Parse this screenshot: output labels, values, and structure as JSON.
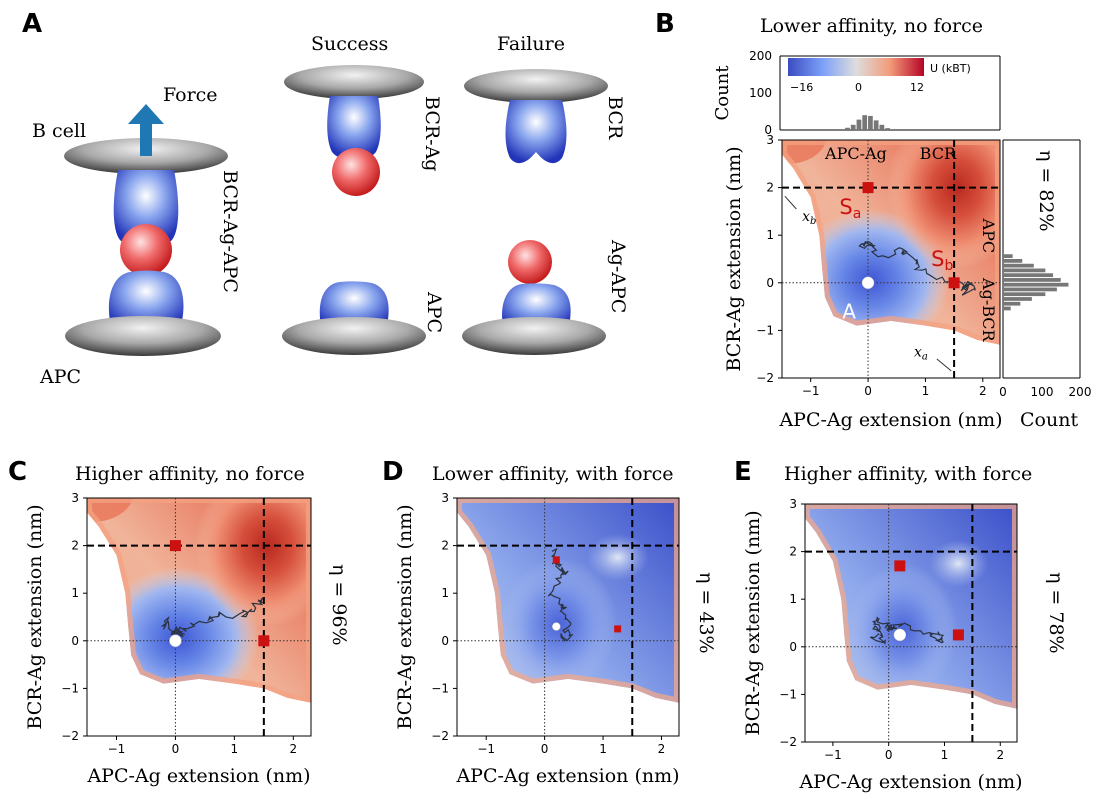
{
  "panel_a": {
    "letter": "A",
    "force_label": "Force",
    "bcell_label": "B cell",
    "apc_label": "APC",
    "complex_label": "BCR-Ag-APC",
    "success_label": "Success",
    "failure_label": "Failure",
    "bcr_ag_label": "BCR-Ag",
    "apc_label_right": "APC",
    "bcr_label": "BCR",
    "ag_apc_label": "Ag-APC"
  },
  "panel_b": {
    "letter": "B",
    "title": "Lower affinity, no force",
    "eta": "η = 82%",
    "colorbar": {
      "min_label": "−16",
      "mid_label": "0",
      "max_label": "12",
      "unit": "U (kBT)",
      "min": -16,
      "max": 12
    },
    "region_labels": {
      "apc_ag": "APC-Ag",
      "bcr": "BCR",
      "apc": "APC",
      "ag_bcr": "Ag-BCR",
      "a": "A",
      "sa": "S",
      "sa_sub": "a",
      "sb": "S",
      "sb_sub": "b"
    },
    "xb_label": "x",
    "xb_sub": "b",
    "xa_label": "x",
    "xa_sub": "a",
    "top_hist": {
      "ylabel": "Count",
      "yticks": [
        "0",
        "100",
        "200"
      ],
      "ymax": 200,
      "bins_x": [
        -0.35,
        -0.25,
        -0.15,
        -0.05,
        0.05,
        0.15,
        0.25,
        0.35
      ],
      "counts": [
        6,
        14,
        28,
        40,
        38,
        26,
        14,
        5
      ]
    },
    "right_hist": {
      "xlabel": "Count",
      "xticks": [
        "0",
        "100",
        "200"
      ],
      "xmax": 200,
      "bins_y": [
        0.55,
        0.45,
        0.35,
        0.25,
        0.15,
        0.05,
        -0.05,
        -0.15,
        -0.25,
        -0.35,
        -0.45,
        -0.55
      ],
      "counts": [
        25,
        50,
        80,
        110,
        130,
        150,
        170,
        140,
        110,
        75,
        45,
        20
      ]
    }
  },
  "panel_c": {
    "letter": "C",
    "title": "Higher affinity, no force",
    "eta": "η = 96%"
  },
  "panel_d": {
    "letter": "D",
    "title": "Lower affinity, with force",
    "eta": "η = 43%"
  },
  "panel_e": {
    "letter": "E",
    "title": "Higher affinity, with force",
    "eta": "η = 78%"
  },
  "axes": {
    "xlabel": "APC-Ag extension (nm)",
    "ylabel": "BCR-Ag extension (nm)",
    "xlim": [
      -1.5,
      2.3
    ],
    "ylim": [
      -2,
      3
    ],
    "xticks": [
      -1,
      0,
      1,
      2
    ],
    "yticks": [
      -2,
      -1,
      0,
      1,
      2,
      3
    ],
    "dashed_x": 1.5,
    "dashed_y": 2.0
  },
  "chart_data": [
    {
      "type": "heatmap",
      "panel": "B",
      "title": "Lower affinity, no force",
      "xlabel": "APC-Ag extension (nm)",
      "ylabel": "BCR-Ag extension (nm)",
      "xlim": [
        -1.5,
        2.3
      ],
      "ylim": [
        -2,
        3
      ],
      "minimum": [
        0,
        0
      ],
      "saddles": [
        [
          0,
          2
        ],
        [
          1.5,
          0
        ]
      ],
      "efficiency": "82%"
    },
    {
      "type": "heatmap",
      "panel": "C",
      "title": "Higher affinity, no force",
      "xlabel": "APC-Ag extension (nm)",
      "ylabel": "BCR-Ag extension (nm)",
      "xlim": [
        -1.5,
        2.3
      ],
      "ylim": [
        -2,
        3
      ],
      "minimum": [
        0,
        0
      ],
      "saddles": [
        [
          0,
          2
        ],
        [
          1.5,
          0
        ]
      ],
      "efficiency": "96%"
    },
    {
      "type": "heatmap",
      "panel": "D",
      "title": "Lower affinity, with force",
      "xlabel": "APC-Ag extension (nm)",
      "ylabel": "BCR-Ag extension (nm)",
      "xlim": [
        -1.5,
        2.3
      ],
      "ylim": [
        -2,
        3
      ],
      "minimum": [
        0.2,
        0.3
      ],
      "saddles": [
        [
          0.2,
          1.7
        ],
        [
          1.25,
          0.25
        ]
      ],
      "efficiency": "43%"
    },
    {
      "type": "heatmap",
      "panel": "E",
      "title": "Higher affinity, with force",
      "xlabel": "APC-Ag extension (nm)",
      "ylabel": "BCR-Ag extension (nm)",
      "xlim": [
        -1.5,
        2.3
      ],
      "ylim": [
        -2,
        3
      ],
      "minimum": [
        0.2,
        0.25
      ],
      "saddles": [
        [
          0.2,
          1.7
        ],
        [
          1.25,
          0.25
        ]
      ],
      "efficiency": "78%"
    }
  ],
  "colors": {
    "red": "#c4201a",
    "blue": "#3b5bd6",
    "deep_red": "#b5271e",
    "marker_red": "#cc1111"
  }
}
